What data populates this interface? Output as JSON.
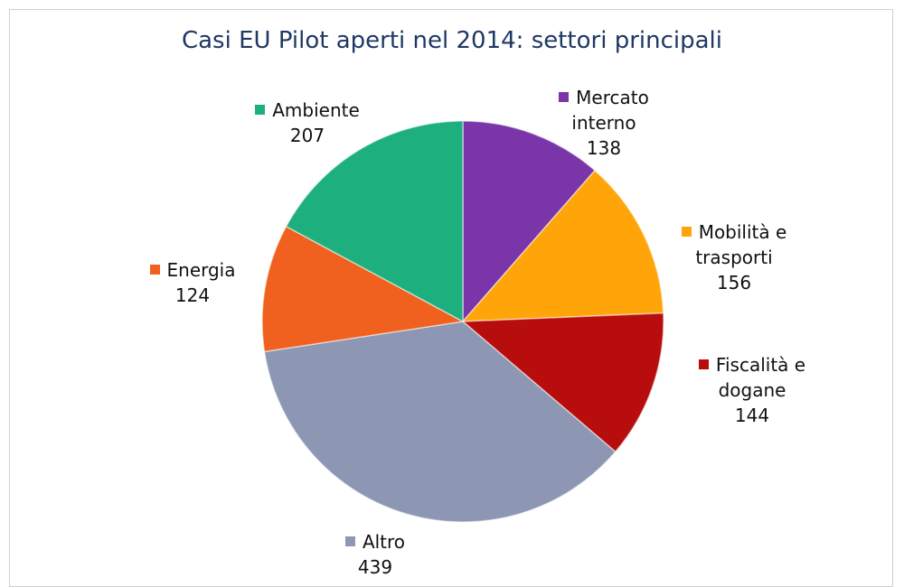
{
  "chart_data": {
    "type": "pie",
    "title": "Casi EU Pilot aperti nel 2014: settori principali",
    "categories": [
      "Mercato interno",
      "Mobilità e trasporti",
      "Fiscalità e dogane",
      "Altro",
      "Energia",
      "Ambiente"
    ],
    "values": [
      138,
      156,
      144,
      439,
      124,
      207
    ],
    "colors": [
      "#7a35a8",
      "#ffa50a",
      "#b80d0d",
      "#8d97b3",
      "#f0601e",
      "#1db07e"
    ]
  }
}
